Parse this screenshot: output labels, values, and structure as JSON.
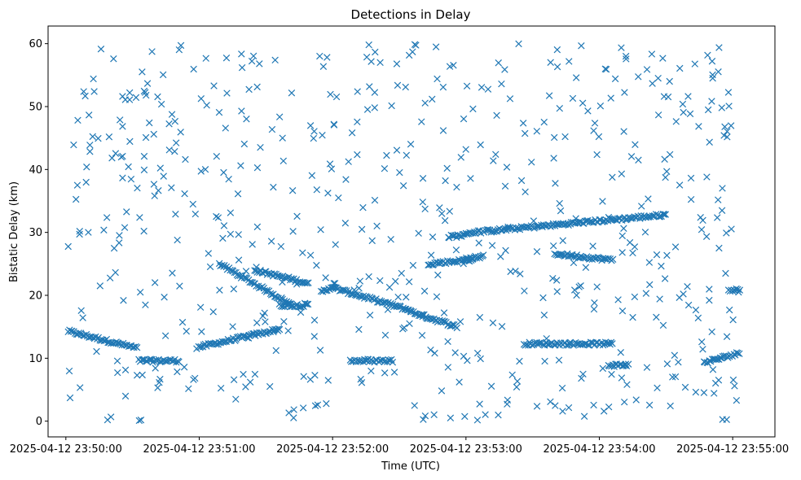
{
  "chart_data": {
    "type": "scatter",
    "title": "Detections in Delay",
    "xlabel": "Time (UTC)",
    "ylabel": "Bistatic Delay (km)",
    "xlim": [
      "2025-04-12 23:49:52",
      "2025-04-12 23:55:19"
    ],
    "ylim": [
      -2.5,
      62.8
    ],
    "x_ticks": [
      "2025-04-12 23:50:00",
      "2025-04-12 23:51:00",
      "2025-04-12 23:52:00",
      "2025-04-12 23:53:00",
      "2025-04-12 23:54:00",
      "2025-04-12 23:55:00"
    ],
    "y_ticks": [
      0,
      10,
      20,
      30,
      40,
      50,
      60
    ],
    "marker": "x",
    "color": "#1f77b4",
    "grid": false,
    "tracks": [
      {
        "x": [
          "2025-04-12 23:50:01",
          "2025-04-12 23:50:32"
        ],
        "y": [
          14.3,
          11.6
        ]
      },
      {
        "x": [
          "2025-04-12 23:50:33",
          "2025-04-12 23:50:51"
        ],
        "y": [
          9.6,
          9.6
        ]
      },
      {
        "x": [
          "2025-04-12 23:50:59",
          "2025-04-12 23:51:36"
        ],
        "y": [
          11.7,
          14.6
        ]
      },
      {
        "x": [
          "2025-04-12 23:51:09",
          "2025-04-12 23:51:42"
        ],
        "y": [
          25.0,
          18.4
        ]
      },
      {
        "x": [
          "2025-04-12 23:51:25",
          "2025-04-12 23:51:49"
        ],
        "y": [
          24.0,
          21.9
        ]
      },
      {
        "x": [
          "2025-04-12 23:51:36",
          "2025-04-12 23:51:49"
        ],
        "y": [
          18.4,
          18.4
        ]
      },
      {
        "x": [
          "2025-04-12 23:51:55",
          "2025-04-12 23:52:00"
        ],
        "y": [
          20.5,
          21.4
        ]
      },
      {
        "x": [
          "2025-04-12 23:52:00",
          "2025-04-12 23:52:35"
        ],
        "y": [
          21.2,
          17.6
        ]
      },
      {
        "x": [
          "2025-04-12 23:52:35",
          "2025-04-12 23:52:56"
        ],
        "y": [
          17.4,
          15.0
        ]
      },
      {
        "x": [
          "2025-04-12 23:52:08",
          "2025-04-12 23:52:27"
        ],
        "y": [
          9.6,
          9.6
        ]
      },
      {
        "x": [
          "2025-04-12 23:52:43",
          "2025-04-12 23:53:03"
        ],
        "y": [
          25.0,
          25.7
        ]
      },
      {
        "x": [
          "2025-04-12 23:52:52",
          "2025-04-12 23:53:00"
        ],
        "y": [
          29.3,
          29.6
        ]
      },
      {
        "x": [
          "2025-04-12 23:53:00",
          "2025-04-12 23:54:30"
        ],
        "y": [
          29.9,
          32.8
        ]
      },
      {
        "x": [
          "2025-04-12 23:53:00",
          "2025-04-12 23:53:08"
        ],
        "y": [
          25.8,
          26.2
        ]
      },
      {
        "x": [
          "2025-04-12 23:53:26",
          "2025-04-12 23:54:06"
        ],
        "y": [
          12.3,
          12.3
        ]
      },
      {
        "x": [
          "2025-04-12 23:53:40",
          "2025-04-12 23:54:06"
        ],
        "y": [
          26.6,
          25.6
        ]
      },
      {
        "x": [
          "2025-04-12 23:54:04",
          "2025-04-12 23:54:13"
        ],
        "y": [
          8.9,
          8.9
        ]
      },
      {
        "x": [
          "2025-04-12 23:54:47",
          "2025-04-12 23:55:03"
        ],
        "y": [
          9.3,
          10.8
        ]
      },
      {
        "x": [
          "2025-04-12 23:54:58",
          "2025-04-12 23:55:03"
        ],
        "y": [
          20.9,
          20.9
        ]
      }
    ],
    "clutter_points": 600,
    "clutter_range": {
      "x": [
        "2025-04-12 23:50:01",
        "2025-04-12 23:55:04"
      ],
      "y": [
        0,
        60
      ]
    }
  }
}
